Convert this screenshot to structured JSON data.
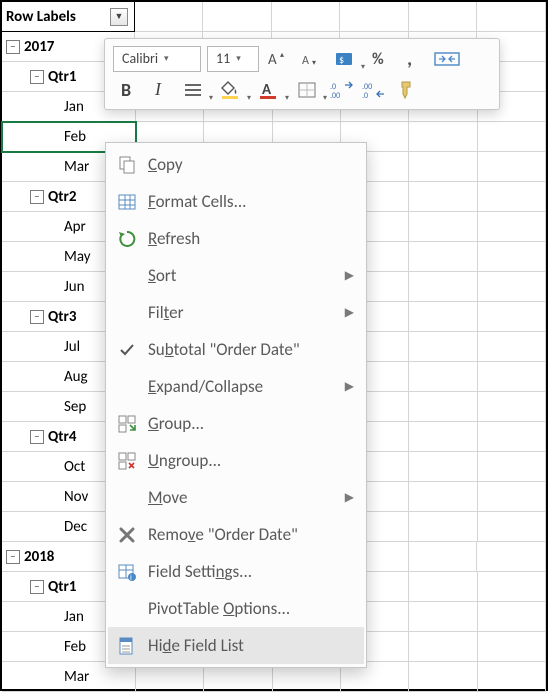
{
  "header": {
    "row_labels": "Row Labels"
  },
  "rows": [
    {
      "type": "year",
      "text": "2017"
    },
    {
      "type": "qtr",
      "text": "Qtr1"
    },
    {
      "type": "month",
      "text": "Jan"
    },
    {
      "type": "month",
      "text": "Feb",
      "selected": true
    },
    {
      "type": "month",
      "text": "Mar"
    },
    {
      "type": "qtr",
      "text": "Qtr2"
    },
    {
      "type": "month",
      "text": "Apr"
    },
    {
      "type": "month",
      "text": "May"
    },
    {
      "type": "month",
      "text": "Jun"
    },
    {
      "type": "qtr",
      "text": "Qtr3"
    },
    {
      "type": "month",
      "text": "Jul"
    },
    {
      "type": "month",
      "text": "Aug"
    },
    {
      "type": "month",
      "text": "Sep"
    },
    {
      "type": "qtr",
      "text": "Qtr4"
    },
    {
      "type": "month",
      "text": "Oct"
    },
    {
      "type": "month",
      "text": "Nov"
    },
    {
      "type": "month",
      "text": "Dec"
    },
    {
      "type": "year",
      "text": "2018"
    },
    {
      "type": "qtr",
      "text": "Qtr1"
    },
    {
      "type": "month",
      "text": "Jan"
    },
    {
      "type": "month",
      "text": "Feb"
    },
    {
      "type": "month",
      "text": "Mar"
    }
  ],
  "minibar": {
    "font_name": "Calibri",
    "font_size": "11",
    "bold": "B",
    "italic": "I"
  },
  "contextMenu": {
    "copy": "Copy",
    "format_cells": "Format Cells...",
    "refresh": "Refresh",
    "sort": "Sort",
    "filter": "Filter",
    "subtotal": "Subtotal \"Order Date\"",
    "expand_collapse": "Expand/Collapse",
    "group": "Group...",
    "ungroup": "Ungroup...",
    "move": "Move",
    "remove": "Remove \"Order Date\"",
    "field_settings": "Field Settings...",
    "pivot_options": "PivotTable Options...",
    "hide_field_list": "Hide Field List"
  },
  "colors": {
    "accent_red": "#d23b2b",
    "accent_yellow": "#ffd34f",
    "selection_green": "#1a7a43",
    "grid": "#d4d4d4",
    "menu_border": "#c7c7c7"
  }
}
